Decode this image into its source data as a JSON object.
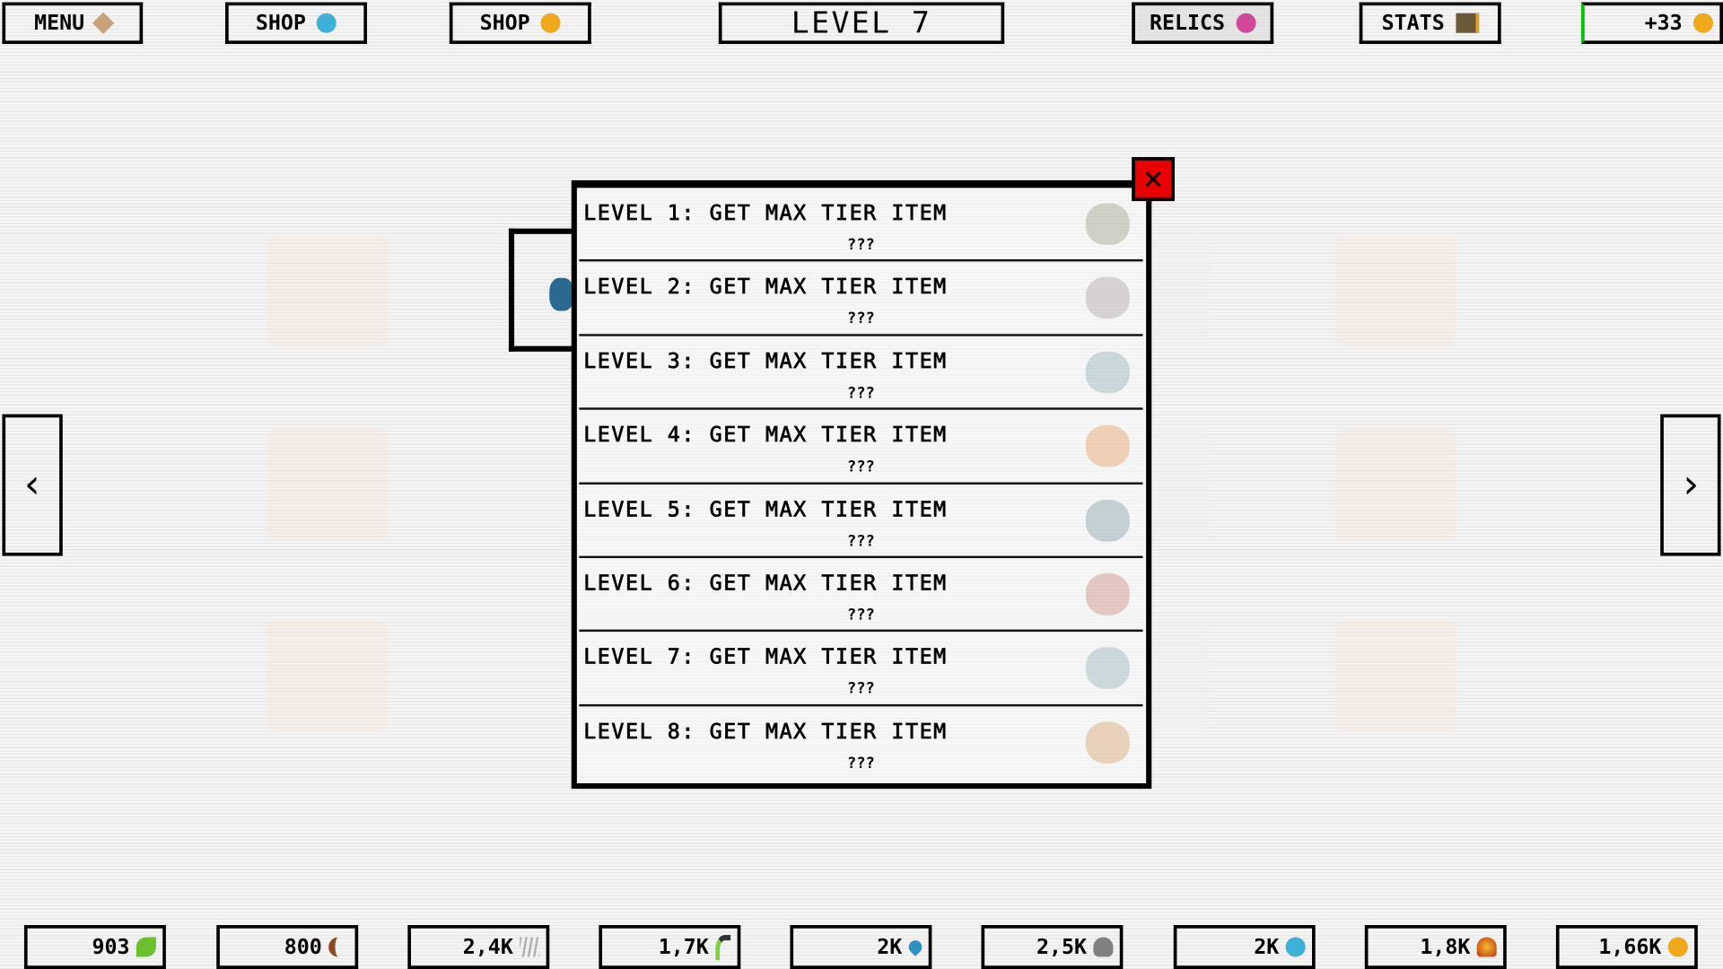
{
  "topbar": {
    "menu": {
      "label": "MENU",
      "icon": "map-icon",
      "color": "#c9a27a"
    },
    "shop1": {
      "label": "SHOP",
      "icon": "blue-orb-icon",
      "color": "#3fb0d8"
    },
    "shop2": {
      "label": "SHOP",
      "icon": "gold-coin-icon",
      "color": "#f0a81c"
    },
    "level_title": "LEVEL 7",
    "relics": {
      "label": "RELICS",
      "icon": "pink-gem-icon",
      "color": "#d04a9a"
    },
    "stats": {
      "label": "STATS",
      "icon": "book-icon",
      "color": "#6b5a3a"
    },
    "income": {
      "label": "+33",
      "icon": "gold-coin-icon",
      "color": "#f0a81c",
      "accent": "#00c000"
    }
  },
  "nav": {
    "prev": "‹",
    "next": "›"
  },
  "modal": {
    "close": "✕",
    "rows": [
      {
        "title": "LEVEL 1: GET MAX TIER ITEM",
        "value": "???",
        "color": "#8a8a70"
      },
      {
        "title": "LEVEL 2: GET MAX TIER ITEM",
        "value": "???",
        "color": "#9a9090"
      },
      {
        "title": "LEVEL 3: GET MAX TIER ITEM",
        "value": "???",
        "color": "#7aa0a8"
      },
      {
        "title": "LEVEL 4: GET MAX TIER ITEM",
        "value": "???",
        "color": "#e08a40"
      },
      {
        "title": "LEVEL 5: GET MAX TIER ITEM",
        "value": "???",
        "color": "#6a8a98"
      },
      {
        "title": "LEVEL 6: GET MAX TIER ITEM",
        "value": "???",
        "color": "#c07060"
      },
      {
        "title": "LEVEL 7: GET MAX TIER ITEM",
        "value": "???",
        "color": "#80a0b0"
      },
      {
        "title": "LEVEL 8: GET MAX TIER ITEM",
        "value": "???",
        "color": "#d09050"
      }
    ]
  },
  "resources": [
    {
      "value": "903",
      "icon": "leaf-icon",
      "color": "#6cc030"
    },
    {
      "value": "800",
      "icon": "wood-icon",
      "color": "#8a4a20"
    },
    {
      "value": "2,4K",
      "icon": "claw-icon",
      "color": "#b0b0b0"
    },
    {
      "value": "1,7K",
      "icon": "sprout-icon",
      "color": "#80d040"
    },
    {
      "value": "2K",
      "icon": "water-drop-icon",
      "color": "#3090c0"
    },
    {
      "value": "2,5K",
      "icon": "skull-icon",
      "color": "#808080"
    },
    {
      "value": "2K",
      "icon": "blue-orb-icon",
      "color": "#3fb0d8"
    },
    {
      "value": "1,8K",
      "icon": "fire-icon",
      "color": "#c03010"
    },
    {
      "value": "1,66K",
      "icon": "gold-coin-icon",
      "color": "#f0a81c"
    }
  ]
}
